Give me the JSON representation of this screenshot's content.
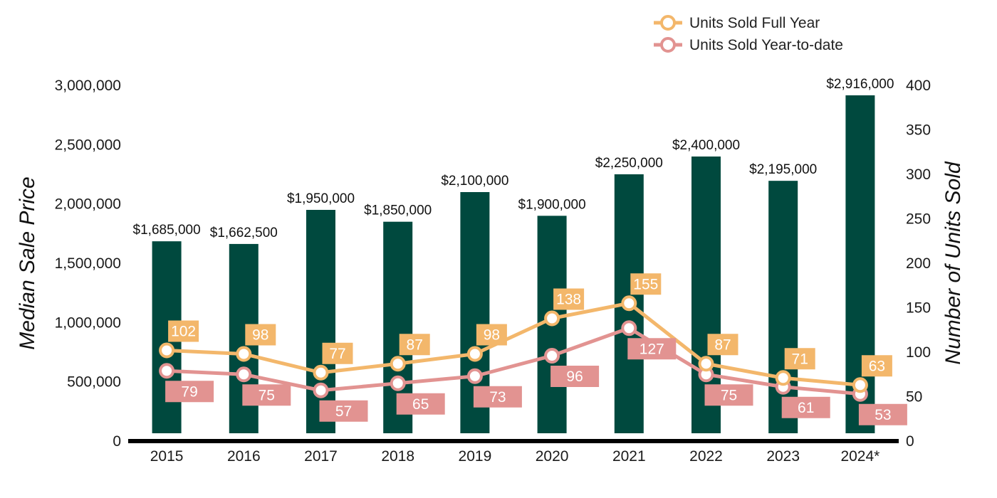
{
  "chart_data": {
    "type": "bar",
    "categories": [
      "2015",
      "2016",
      "2017",
      "2018",
      "2019",
      "2020",
      "2021",
      "2022",
      "2023",
      "2024*"
    ],
    "bar_series": {
      "name": "",
      "values": [
        1685000,
        1662500,
        1950000,
        1850000,
        2100000,
        1900000,
        2250000,
        2400000,
        2195000,
        2916000
      ],
      "labels": [
        "$1,685,000",
        "$1,662,500",
        "$1,950,000",
        "$1,850,000",
        "$2,100,000",
        "$1,900,000",
        "$2,250,000",
        "$2,400,000",
        "$2,195,000",
        "$2,916,000"
      ],
      "color": "#00493E"
    },
    "line_series": [
      {
        "name": "Units Sold Full Year",
        "type": "line",
        "axis": "right",
        "color": "#F3B76B",
        "values": [
          102,
          98,
          77,
          87,
          98,
          138,
          155,
          87,
          71,
          63
        ]
      },
      {
        "name": "Units Sold Year-to-date",
        "type": "line",
        "axis": "right",
        "color": "#E29391",
        "values": [
          79,
          75,
          57,
          65,
          73,
          96,
          127,
          75,
          61,
          53
        ]
      }
    ],
    "y_left": {
      "label": "Median Sale Price",
      "range": [
        0,
        3000000
      ],
      "ticks": [
        0,
        500000,
        1000000,
        1500000,
        2000000,
        2500000,
        3000000
      ],
      "tick_labels": [
        "0",
        "500,000",
        "1,000,000",
        "1,500,000",
        "2,000,000",
        "2,500,000",
        "3,000,000"
      ]
    },
    "y_right": {
      "label": "Number of Units Sold",
      "range": [
        0,
        400
      ],
      "ticks": [
        0,
        50,
        100,
        150,
        200,
        250,
        300,
        350,
        400
      ],
      "tick_labels": [
        "0",
        "50",
        "100",
        "150",
        "200",
        "250",
        "300",
        "350",
        "400"
      ]
    },
    "grid": false,
    "legend_position": "top-right"
  }
}
